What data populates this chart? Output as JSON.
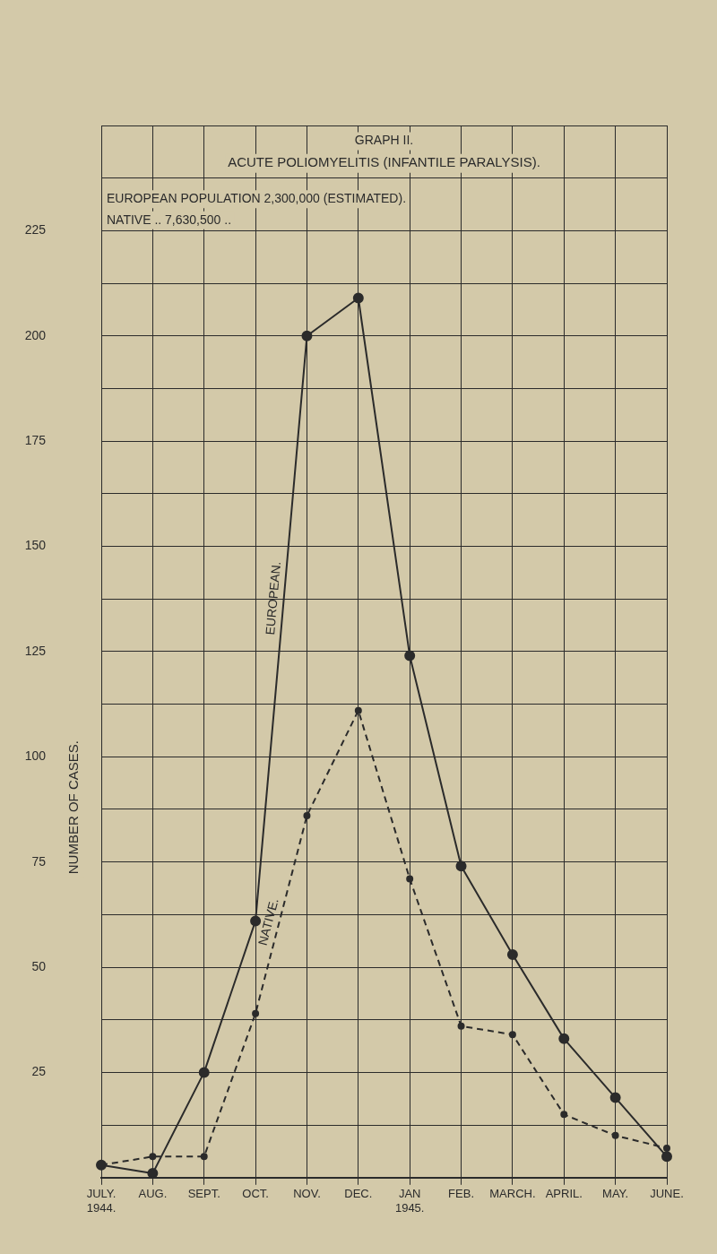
{
  "chart_data": {
    "type": "line",
    "title": "GRAPH II.",
    "subtitle": "ACUTE POLIOMYELITIS (INFANTILE PARALYSIS).",
    "ylabel": "NUMBER OF CASES.",
    "annotations": [
      "EUROPEAN POPULATION 2,300,000 (ESTIMATED).",
      "NATIVE .. 7,630,500 .."
    ],
    "categories": [
      "JULY.\n1944.",
      "AUG.",
      "SEPT.",
      "OCT.",
      "NOV.",
      "DEC.",
      "JAN\n1945.",
      "FEB.",
      "MARCH.",
      "APRIL.",
      "MAY.",
      "JUNE."
    ],
    "series": [
      {
        "name": "EUROPEAN.",
        "color": "#2b2b2b",
        "line_style": "solid",
        "values": [
          3,
          1,
          25,
          61,
          200,
          209,
          124,
          74,
          53,
          33,
          19,
          5
        ]
      },
      {
        "name": "NATIVE.",
        "color": "#2b2b2b",
        "line_style": "dashed",
        "values": [
          3,
          5,
          5,
          39,
          86,
          111,
          71,
          36,
          34,
          15,
          10,
          7
        ]
      }
    ],
    "ylim": [
      0,
      250
    ],
    "yticks": [
      {
        "value": 0,
        "label": null
      },
      {
        "value": 12.5,
        "label": null
      },
      25,
      {
        "value": 37.5,
        "label": null
      },
      50,
      {
        "value": 62.5,
        "label": null
      },
      75,
      {
        "value": 87.5,
        "label": null
      },
      100,
      {
        "value": 112.5,
        "label": null
      },
      125,
      {
        "value": 137.5,
        "label": null
      },
      150,
      {
        "value": 162.5,
        "label": null
      },
      175,
      {
        "value": 187.5,
        "label": null
      },
      200,
      {
        "value": 212.5,
        "label": null
      },
      225,
      {
        "value": 237.5,
        "label": null
      },
      {
        "value": 250,
        "label": null
      }
    ],
    "grid": true,
    "legend": false,
    "marker": "circle"
  }
}
